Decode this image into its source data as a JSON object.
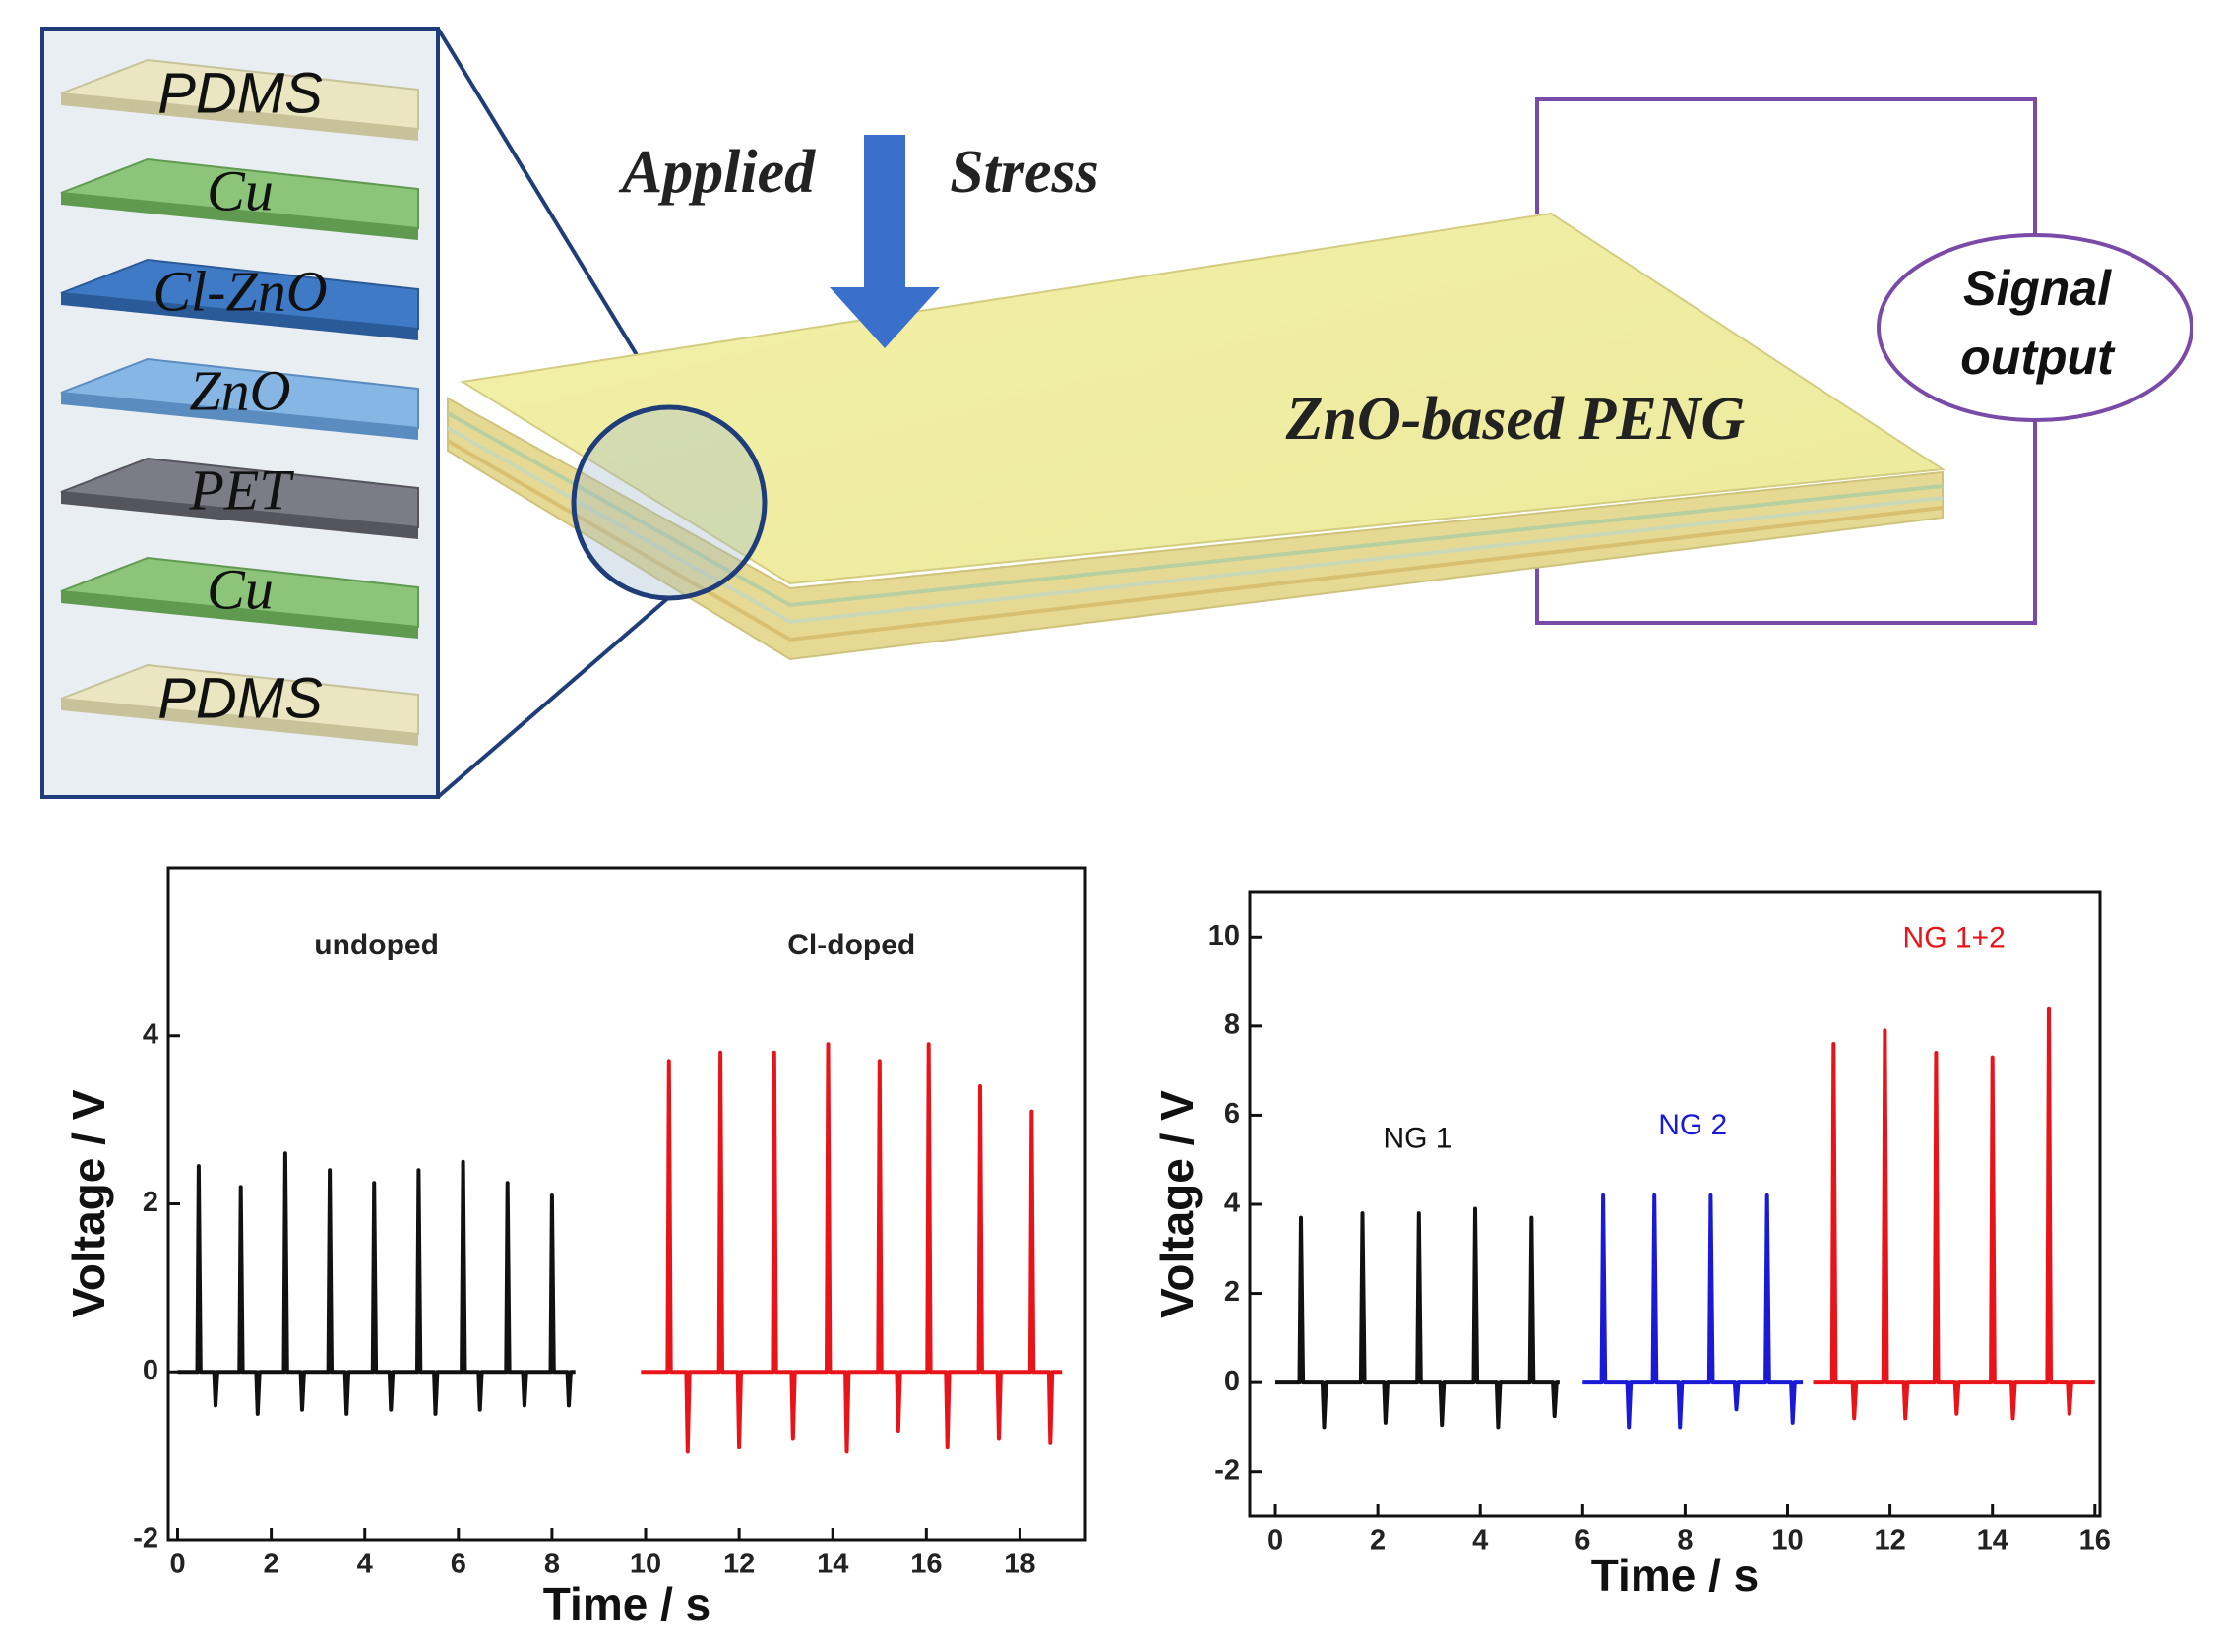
{
  "diagram": {
    "layers": [
      "PDMS",
      "Cu",
      "Cl-ZnO",
      "ZnO",
      "PET",
      "Cu",
      "PDMS"
    ],
    "stress_label": [
      "Applied",
      "Stress"
    ],
    "device_label": "ZnO-based PENG",
    "output_label": [
      "Signal",
      "output"
    ]
  },
  "chart_data": [
    {
      "type": "line",
      "xlabel": "Time / s",
      "ylabel": "Voltage / V",
      "xlim": [
        -0.2,
        19.4
      ],
      "ylim": [
        -2,
        6
      ],
      "xticks": [
        0,
        2,
        4,
        6,
        8,
        10,
        12,
        14,
        16,
        18
      ],
      "yticks": [
        -2,
        0,
        2,
        4
      ],
      "legend_color_by_series": false,
      "series": [
        {
          "name": "undoped",
          "color": "#111111",
          "x": [
            0,
            0.42,
            0.45,
            0.49,
            0.78,
            0.81,
            0.85,
            1.32,
            1.35,
            1.39,
            1.68,
            1.71,
            1.75,
            2.27,
            2.3,
            2.34,
            2.63,
            2.66,
            2.7,
            3.22,
            3.25,
            3.29,
            3.58,
            3.61,
            3.65,
            4.17,
            4.2,
            4.24,
            4.53,
            4.56,
            4.6,
            5.12,
            5.15,
            5.19,
            5.48,
            5.51,
            5.55,
            6.07,
            6.1,
            6.14,
            6.43,
            6.46,
            6.5,
            7.02,
            7.05,
            7.09,
            7.38,
            7.41,
            7.45,
            7.97,
            8.0,
            8.04,
            8.33,
            8.36,
            8.4,
            8.5
          ],
          "values": [
            0,
            0,
            2.45,
            0,
            0,
            -0.4,
            0,
            0,
            2.2,
            0,
            0,
            -0.5,
            0,
            0,
            2.6,
            0,
            0,
            -0.45,
            0,
            0,
            2.4,
            0,
            0,
            -0.5,
            0,
            0,
            2.25,
            0,
            0,
            -0.45,
            0,
            0,
            2.4,
            0,
            0,
            -0.5,
            0,
            0,
            2.5,
            0,
            0,
            -0.45,
            0,
            0,
            2.25,
            0,
            0,
            -0.4,
            0,
            0,
            2.1,
            0,
            0,
            -0.4,
            0,
            0
          ]
        },
        {
          "name": "Cl-doped",
          "color": "#e8141a",
          "x": [
            9.9,
            10.47,
            10.5,
            10.54,
            10.87,
            10.9,
            10.94,
            11.57,
            11.6,
            11.64,
            11.97,
            12.0,
            12.04,
            12.72,
            12.75,
            12.79,
            13.12,
            13.15,
            13.19,
            13.87,
            13.9,
            13.94,
            14.27,
            14.3,
            14.34,
            14.97,
            15.0,
            15.04,
            15.37,
            15.4,
            15.44,
            16.02,
            16.05,
            16.09,
            16.42,
            16.45,
            16.49,
            17.12,
            17.15,
            17.19,
            17.52,
            17.55,
            17.59,
            18.22,
            18.25,
            18.29,
            18.62,
            18.65,
            18.69,
            18.9
          ],
          "values": [
            0,
            0,
            3.7,
            0,
            0,
            -0.95,
            0,
            0,
            3.8,
            0,
            0,
            -0.9,
            0,
            0,
            3.8,
            0,
            0,
            -0.8,
            0,
            0,
            3.9,
            0,
            0,
            -0.95,
            0,
            0,
            3.7,
            0,
            0,
            -0.7,
            0,
            0,
            3.9,
            0,
            0,
            -0.9,
            0,
            0,
            3.4,
            0,
            0,
            -0.8,
            0,
            0,
            3.1,
            0,
            0,
            -0.85,
            0,
            0
          ]
        }
      ]
    },
    {
      "type": "line",
      "xlabel": "Time / s",
      "ylabel": "Voltage / V",
      "xlim": [
        -0.5,
        16.1
      ],
      "ylim": [
        -3,
        11
      ],
      "xticks": [
        0,
        2,
        4,
        6,
        8,
        10,
        12,
        14,
        16
      ],
      "yticks": [
        -2,
        0,
        2,
        4,
        6,
        8,
        10
      ],
      "legend_color_by_series": true,
      "series": [
        {
          "name": "NG 1",
          "color": "#111111",
          "x": [
            0,
            0.47,
            0.5,
            0.54,
            0.92,
            0.95,
            0.99,
            1.67,
            1.7,
            1.74,
            2.12,
            2.15,
            2.19,
            2.77,
            2.8,
            2.84,
            3.22,
            3.25,
            3.29,
            3.87,
            3.9,
            3.94,
            4.32,
            4.35,
            4.39,
            4.97,
            5.0,
            5.04,
            5.42,
            5.45,
            5.49,
            5.55
          ],
          "values": [
            0,
            0,
            3.7,
            0,
            0,
            -1.0,
            0,
            0,
            3.8,
            0,
            0,
            -0.9,
            0,
            0,
            3.8,
            0,
            0,
            -0.95,
            0,
            0,
            3.9,
            0,
            0,
            -1.0,
            0,
            0,
            3.7,
            0,
            0,
            -0.75,
            0,
            0
          ]
        },
        {
          "name": "NG 2",
          "color": "#1a1ad6",
          "x": [
            6.0,
            6.37,
            6.4,
            6.44,
            6.87,
            6.9,
            6.94,
            7.37,
            7.4,
            7.44,
            7.87,
            7.9,
            7.94,
            8.47,
            8.5,
            8.54,
            8.97,
            9.0,
            9.04,
            9.57,
            9.6,
            9.64,
            10.07,
            10.1,
            10.14,
            10.3
          ],
          "values": [
            0,
            0,
            4.2,
            0,
            0,
            -1.0,
            0,
            0,
            4.2,
            0,
            0,
            -1.0,
            0,
            0,
            4.2,
            0,
            0,
            -0.6,
            0,
            0,
            4.2,
            0,
            0,
            -0.9,
            0,
            0
          ]
        },
        {
          "name": "NG 1+2",
          "color": "#e8141a",
          "x": [
            10.5,
            10.87,
            10.9,
            10.94,
            11.27,
            11.3,
            11.34,
            11.87,
            11.9,
            11.94,
            12.27,
            12.3,
            12.34,
            12.87,
            12.9,
            12.94,
            13.27,
            13.3,
            13.34,
            13.97,
            14.0,
            14.04,
            14.37,
            14.4,
            14.44,
            15.07,
            15.1,
            15.14,
            15.47,
            15.5,
            15.54,
            16.0
          ],
          "values": [
            0,
            0,
            7.6,
            0,
            0,
            -0.8,
            0,
            0,
            7.9,
            0,
            0,
            -0.8,
            0,
            0,
            7.4,
            0,
            0,
            -0.7,
            0,
            0,
            7.3,
            0,
            0,
            -0.8,
            0,
            0,
            8.4,
            0,
            0,
            -0.7,
            0,
            0
          ]
        }
      ]
    }
  ]
}
